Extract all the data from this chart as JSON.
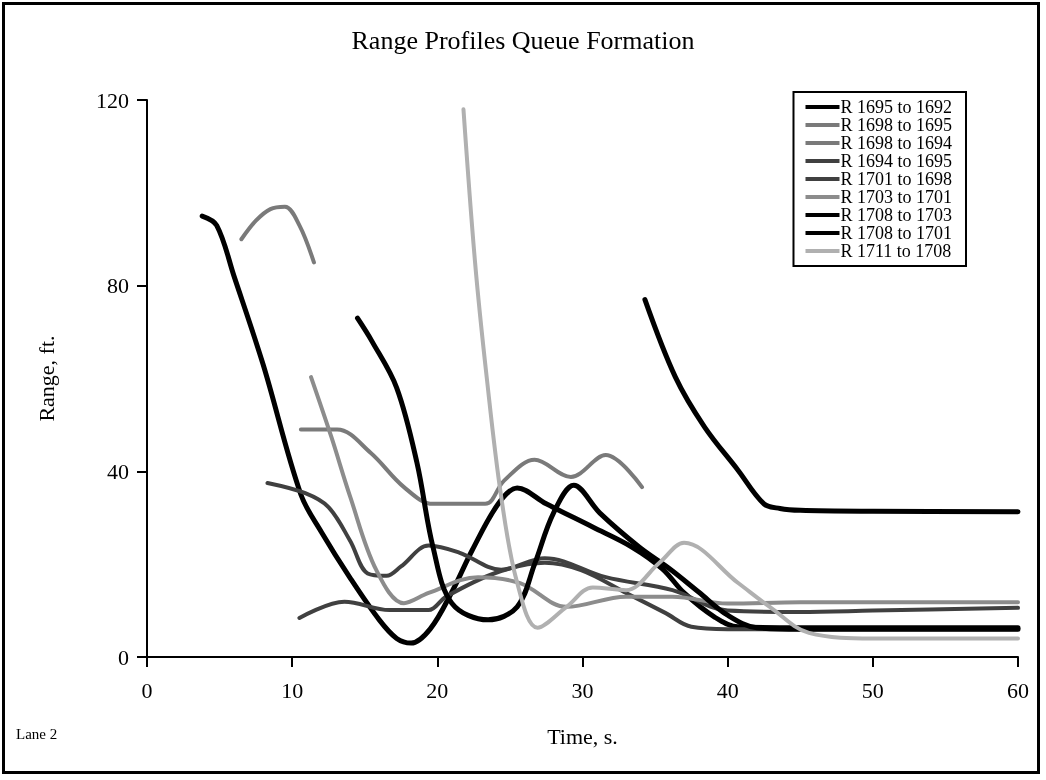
{
  "chart_data": {
    "type": "line",
    "title": "Range Profiles Queue Formation",
    "xlabel": "Time, s.",
    "ylabel": "Range, ft.",
    "annotations": [
      "Lane 2"
    ],
    "xlim": [
      0,
      60
    ],
    "xticks": [
      0,
      10,
      20,
      30,
      40,
      50,
      60
    ],
    "ylim": [
      0,
      120
    ],
    "yticks": [
      0,
      40,
      80,
      120
    ],
    "grid": false,
    "legend": "top right",
    "marker": "none",
    "line_style": "solid",
    "series": [
      {
        "name": "R 1695 to 1692",
        "color": "#000000",
        "x": [
          3.8,
          4.8,
          6,
          8,
          10.6,
          12,
          14,
          16,
          17.2,
          18.2,
          19.5,
          21,
          22.4,
          24.2,
          25.5,
          27.5,
          30.7,
          33.4,
          35.5,
          37,
          39.1,
          40.7,
          45,
          50,
          60
        ],
        "values": [
          95,
          93,
          82,
          63,
          35,
          27,
          17,
          8,
          4,
          3,
          6,
          14,
          23,
          33,
          36.4,
          33,
          28,
          23.7,
          19,
          13.8,
          8.6,
          6.5,
          6.3,
          6.3,
          6.3
        ]
      },
      {
        "name": "R 1698 to 1695",
        "color": "#7a7a7a",
        "x": [
          6.5,
          7.5,
          8.5,
          9.5,
          10.5,
          11.5
        ],
        "values": [
          90,
          94,
          96.5,
          97,
          93,
          85
        ]
      },
      {
        "name": "R 1698 to 1694",
        "color": "#7a7a7a",
        "x": [
          10.6,
          13.1,
          15.4,
          17.7,
          19.7,
          23.3,
          24.6,
          26.7,
          29.2,
          31.6,
          34.1
        ],
        "values": [
          49,
          49,
          44,
          36.6,
          33,
          33,
          38,
          42.5,
          38.8,
          43.5,
          36.6
        ]
      },
      {
        "name": "R 1694 to 1695",
        "color": "#404040",
        "x": [
          8.3,
          10.9,
          12.5,
          14,
          15.2,
          16.5,
          17.5,
          19.4,
          21.5,
          24.4,
          27.4,
          31.6,
          36.2,
          40,
          45,
          50,
          60
        ],
        "values": [
          37.5,
          35.3,
          32.3,
          25,
          18,
          17.5,
          19.5,
          24,
          22.5,
          18.8,
          21.3,
          17.2,
          14.4,
          10,
          9.7,
          10,
          10.6
        ]
      },
      {
        "name": "R 1701 to 1698",
        "color": "#404040",
        "x": [
          10.5,
          13.6,
          16.7,
          19.4,
          20.6,
          24,
          27.4,
          29.9,
          33,
          35.7,
          37.5,
          40,
          45,
          50,
          60
        ],
        "values": [
          8.4,
          11.9,
          10.1,
          10.1,
          13,
          18.1,
          20.3,
          18.7,
          13.8,
          9.5,
          6.5,
          6,
          6,
          6,
          6
        ]
      },
      {
        "name": "R 1703 to 1701",
        "color": "#8c8c8c",
        "x": [
          11.3,
          12.7,
          14,
          15.8,
          17.7,
          19.4,
          22.8,
          25.7,
          28.9,
          33,
          36.2,
          40,
          45,
          50,
          60
        ],
        "values": [
          60.3,
          47.4,
          34.5,
          18.7,
          11.6,
          13.8,
          17.2,
          15.9,
          10.8,
          13,
          13,
          11.5,
          11.8,
          11.8,
          11.8
        ]
      },
      {
        "name": "R 1708 to 1703",
        "color": "#000000",
        "x": [
          14.5,
          15.5,
          17.2,
          18.6,
          19.7,
          21,
          23.5,
          25.5,
          26.7,
          28,
          29.4,
          31.2,
          33.9,
          36,
          38,
          40,
          42,
          45,
          50,
          60
        ],
        "values": [
          73,
          68,
          58,
          41.8,
          23.7,
          11.6,
          8,
          10.8,
          20,
          31,
          37,
          31,
          23.7,
          19,
          14,
          9,
          6.3,
          6,
          6,
          6
        ]
      },
      {
        "name": "R 1708 to 1701",
        "color": "#000000",
        "x": [
          34.3,
          36.4,
          38.4,
          40.7,
          42.5,
          43.6,
          45,
          50,
          60
        ],
        "values": [
          77,
          60.3,
          49.6,
          40.3,
          33,
          32,
          31.6,
          31.4,
          31.3
        ]
      },
      {
        "name": "R 1711 to 1708",
        "color": "#b0b0b0",
        "x": [
          21.8,
          22.6,
          23.4,
          24.4,
          25.5,
          26.9,
          28.9,
          30.7,
          33,
          35.3,
          37,
          40.7,
          42.9,
          45.6,
          50,
          60
        ],
        "values": [
          118,
          85,
          60.3,
          34.5,
          16,
          6.3,
          10.8,
          15,
          14.4,
          20.3,
          24.6,
          16,
          10.8,
          5.2,
          4,
          4
        ]
      }
    ]
  }
}
